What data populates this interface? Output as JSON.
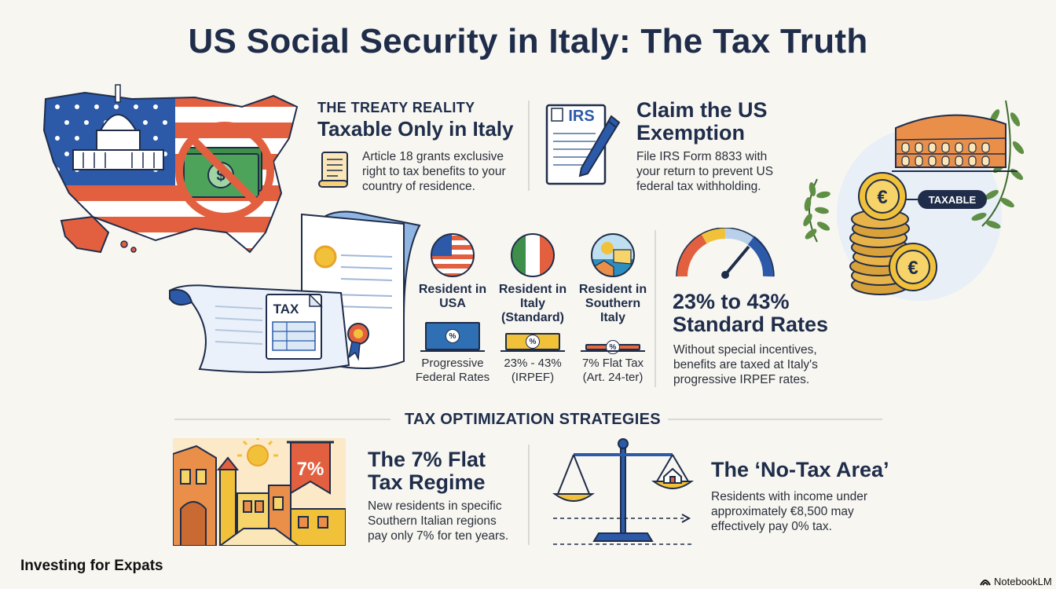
{
  "title": "US Social Security in Italy: The Tax Truth",
  "treaty": {
    "kicker": "THE TREATY REALITY",
    "heading": "Taxable Only in Italy",
    "body": "Article 18 grants exclusive right to tax benefits to your country of residence."
  },
  "exemption": {
    "logo_text": "IRS",
    "heading": "Claim the US Exemption",
    "body": "File IRS Form 8833 with your return to prevent US federal tax withholding."
  },
  "illustration": {
    "tax_doc_label": "TAX",
    "coin_tag": "TAXABLE",
    "euro_symbol": "€",
    "dollar_symbol": "$"
  },
  "comparison": {
    "columns": [
      {
        "title": "Resident in USA",
        "sub": "Progressive Federal Rates",
        "level": 0.9,
        "color": "#2f6fb3",
        "flag": "us-flag-icon"
      },
      {
        "title": "Resident in Italy (Standard)",
        "sub": "23% - 43% (IRPEF)",
        "level": 0.55,
        "color": "#f2c13a",
        "flag": "italy-flag-icon"
      },
      {
        "title": "Resident in Southern Italy",
        "sub": "7% Flat Tax (Art. 24-ter)",
        "level": 0.2,
        "color": "#e76a3c",
        "flag": "southern-italy-icon"
      }
    ],
    "pct_symbol": "%"
  },
  "rates": {
    "heading": "23% to 43% Standard Rates",
    "body": "Without special incentives, benefits are taxed at Italy's progressive IRPEF rates."
  },
  "strategies": {
    "section_title": "TAX OPTIMIZATION STRATEGIES",
    "flat_tax": {
      "banner": "7%",
      "heading": "The 7% Flat Tax Regime",
      "body": "New residents in specific Southern Italian regions pay only 7% for ten years."
    },
    "no_tax": {
      "heading": "The ‘No-Tax Area’",
      "body": "Residents with income under approximately €8,500 may effectively pay 0% tax."
    }
  },
  "footer": {
    "brand": "Investing for Expats",
    "credit": "NotebookLM"
  }
}
